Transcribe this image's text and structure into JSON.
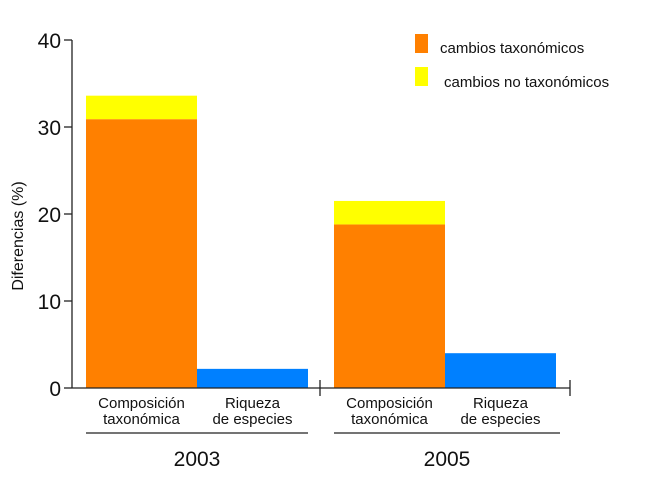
{
  "chart_data": {
    "type": "bar",
    "ylabel": "Diferencias (%)",
    "ylim": [
      0,
      40
    ],
    "yticks": [
      0,
      10,
      20,
      30,
      40
    ],
    "grid": false,
    "legend_position": "top-right",
    "legend": [
      {
        "label": "cambios taxonómicos",
        "color": "#ff8000"
      },
      {
        "label": "cambios no taxonómicos",
        "color": "#ffff00"
      }
    ],
    "groups": [
      {
        "label": "2003",
        "bars": [
          {
            "label_lines": [
              "Composición",
              "taxonómica"
            ],
            "segments": [
              {
                "series": "cambios taxonómicos",
                "value": 30.9,
                "color": "#ff8000"
              },
              {
                "series": "cambios no taxonómicos",
                "value": 2.7,
                "color": "#ffff00"
              }
            ]
          },
          {
            "label_lines": [
              "Riqueza",
              "de especies"
            ],
            "segments": [
              {
                "series": "single",
                "value": 2.2,
                "color": "#0080ff"
              }
            ]
          }
        ]
      },
      {
        "label": "2005",
        "bars": [
          {
            "label_lines": [
              "Composición",
              "taxonómica"
            ],
            "segments": [
              {
                "series": "cambios taxonómicos",
                "value": 18.8,
                "color": "#ff8000"
              },
              {
                "series": "cambios no taxonómicos",
                "value": 2.7,
                "color": "#ffff00"
              }
            ]
          },
          {
            "label_lines": [
              "Riqueza",
              "de especies"
            ],
            "segments": [
              {
                "series": "single",
                "value": 4.0,
                "color": "#0080ff"
              }
            ]
          }
        ]
      }
    ]
  }
}
